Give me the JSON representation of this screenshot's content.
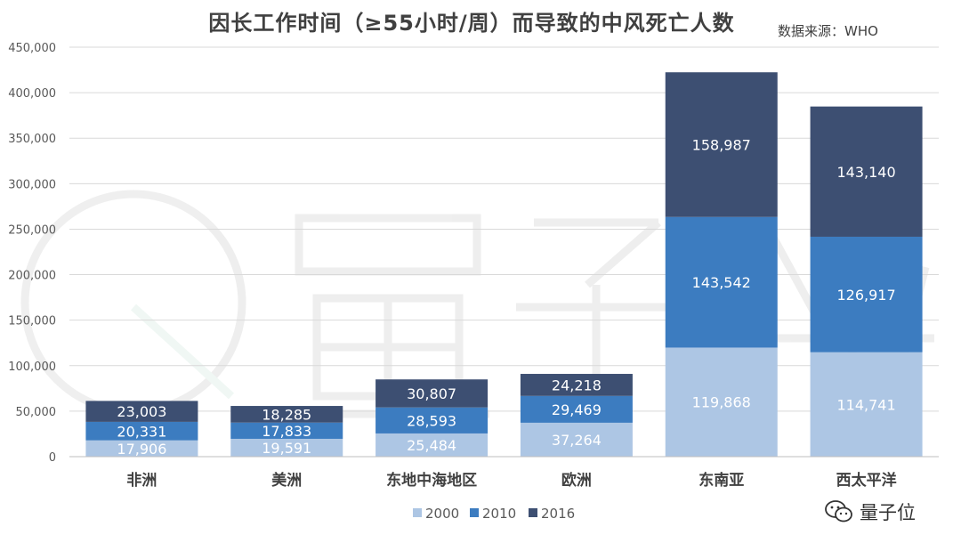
{
  "chart_data": {
    "type": "bar",
    "stacked": true,
    "title": "因长工作时间（≥55小时/周）而导致的中风死亡人数",
    "source": "数据来源：WHO",
    "categories": [
      "非洲",
      "美洲",
      "东地中海地区",
      "欧洲",
      "东南亚",
      "西太平洋"
    ],
    "series": [
      {
        "name": "2000",
        "values": [
          17906,
          19591,
          25484,
          37264,
          119868,
          114741
        ],
        "labels": [
          "17,906",
          "19,591",
          "25,484",
          "37,264",
          "119,868",
          "114,741"
        ]
      },
      {
        "name": "2010",
        "values": [
          20331,
          17833,
          28593,
          29469,
          143542,
          126917
        ],
        "labels": [
          "20,331",
          "17,833",
          "28,593",
          "29,469",
          "143,542",
          "126,917"
        ]
      },
      {
        "name": "2016",
        "values": [
          23003,
          18285,
          30807,
          24218,
          158987,
          143140
        ],
        "labels": [
          "23,003",
          "18,285",
          "30,807",
          "24,218",
          "158,987",
          "143,140"
        ]
      }
    ],
    "colors": [
      "#adc6e4",
      "#3c7cc0",
      "#3d4f72"
    ],
    "ylim": [
      0,
      450000
    ],
    "yticks": [
      0,
      50000,
      100000,
      150000,
      200000,
      250000,
      300000,
      350000,
      400000,
      450000
    ],
    "ytick_labels": [
      "0",
      "50,000",
      "100,000",
      "150,000",
      "200,000",
      "250,000",
      "300,000",
      "350,000",
      "400,000",
      "450,000"
    ],
    "grid": true,
    "legend": "bottom-center"
  },
  "watermark": {
    "text": "量子位",
    "color": "#333333"
  }
}
